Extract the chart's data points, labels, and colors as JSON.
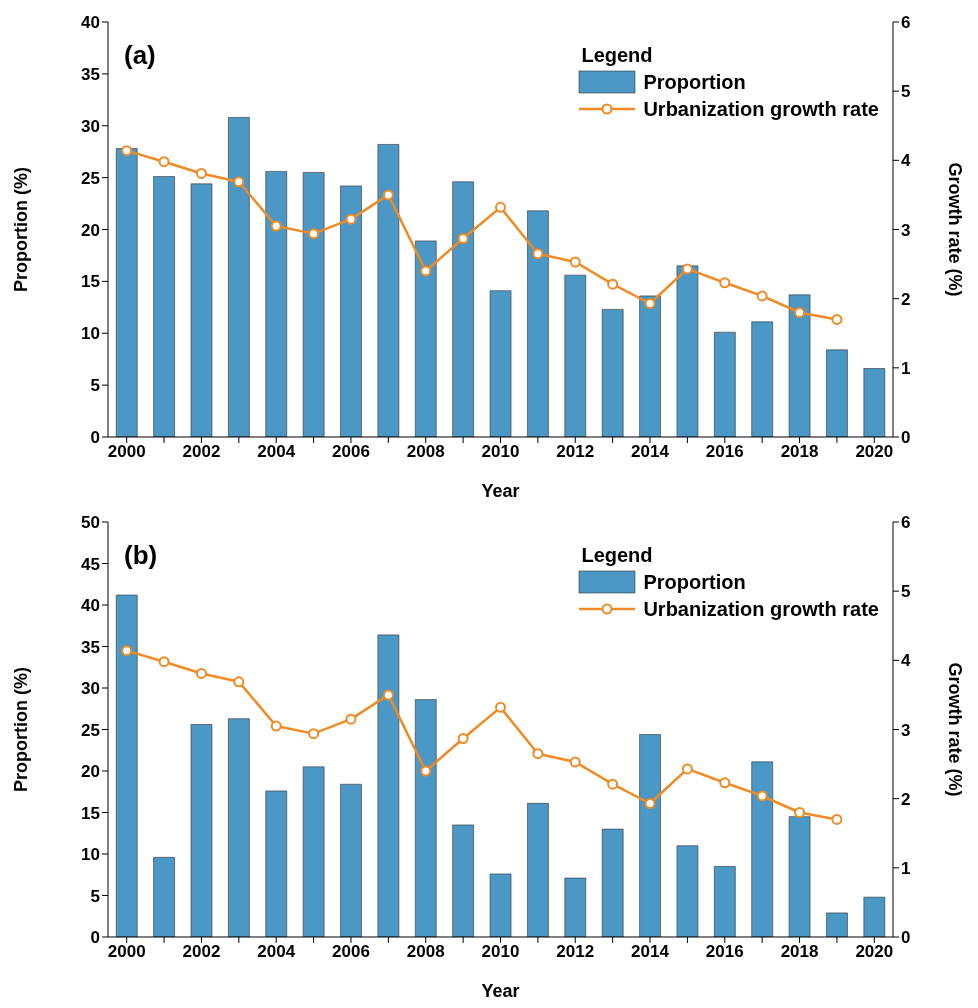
{
  "chart_data": [
    {
      "type": "bar",
      "annotations": [
        "(a)"
      ],
      "xlabel": "Year",
      "ylabel": "Proportion (%)",
      "y2label": "Growth rate (%)",
      "legend_title": "Legend",
      "legend": "top right",
      "grid": false,
      "categories": [
        "2000",
        null,
        "2002",
        null,
        "2004",
        null,
        "2006",
        null,
        "2008",
        null,
        "2010",
        null,
        "2012",
        null,
        "2014",
        null,
        "2016",
        null,
        "2018",
        null,
        "2020"
      ],
      "ylim": [
        0,
        40
      ],
      "yticks": [
        0,
        5,
        10,
        15,
        20,
        25,
        30,
        35,
        40
      ],
      "y2lim": [
        0,
        6
      ],
      "y2ticks": [
        0,
        1,
        2,
        3,
        4,
        5,
        6
      ],
      "series": [
        {
          "name": "Proportion",
          "color": "#4b97c6",
          "values": [
            27.8,
            25.1,
            24.4,
            30.8,
            25.6,
            25.5,
            24.2,
            28.2,
            18.9,
            24.6,
            14.1,
            21.8,
            15.6,
            12.3,
            13.6,
            16.5,
            10.1,
            11.1,
            13.7,
            8.4,
            6.6
          ]
        },
        {
          "name": "Urbanization growth rate",
          "type": "line",
          "axis": "y2",
          "color": "#f08a24",
          "marker": "circle",
          "values": [
            4.14,
            3.98,
            3.81,
            3.69,
            3.05,
            2.94,
            3.15,
            3.5,
            2.4,
            2.87,
            3.32,
            2.65,
            2.53,
            2.21,
            1.93,
            2.43,
            2.23,
            2.04,
            1.8,
            1.7,
            null
          ]
        }
      ]
    },
    {
      "type": "bar",
      "annotations": [
        "(b)"
      ],
      "xlabel": "Year",
      "ylabel": "Proportion (%)",
      "y2label": "Growth rate (%)",
      "legend_title": "Legend",
      "legend": "top right",
      "grid": false,
      "categories": [
        "2000",
        null,
        "2002",
        null,
        "2004",
        null,
        "2006",
        null,
        "2008",
        null,
        "2010",
        null,
        "2012",
        null,
        "2014",
        null,
        "2016",
        null,
        "2018",
        null,
        "2020"
      ],
      "ylim": [
        0,
        50
      ],
      "yticks": [
        0,
        5,
        10,
        15,
        20,
        25,
        30,
        35,
        40,
        45,
        50
      ],
      "y2lim": [
        0,
        6
      ],
      "y2ticks": [
        0,
        1,
        2,
        3,
        4,
        5,
        6
      ],
      "series": [
        {
          "name": "Proportion",
          "color": "#4b97c6",
          "values": [
            41.2,
            9.6,
            25.6,
            26.3,
            17.6,
            20.5,
            18.4,
            36.4,
            28.6,
            13.5,
            7.6,
            16.1,
            7.1,
            13.0,
            24.4,
            11.0,
            8.5,
            21.1,
            14.5,
            2.9,
            4.8
          ]
        },
        {
          "name": "Urbanization growth rate",
          "type": "line",
          "axis": "y2",
          "color": "#f08a24",
          "marker": "circle",
          "values": [
            4.14,
            3.98,
            3.81,
            3.69,
            3.05,
            2.94,
            3.15,
            3.5,
            2.4,
            2.87,
            3.32,
            2.65,
            2.53,
            2.21,
            1.93,
            2.43,
            2.23,
            2.04,
            1.8,
            1.7,
            null
          ]
        }
      ]
    }
  ]
}
